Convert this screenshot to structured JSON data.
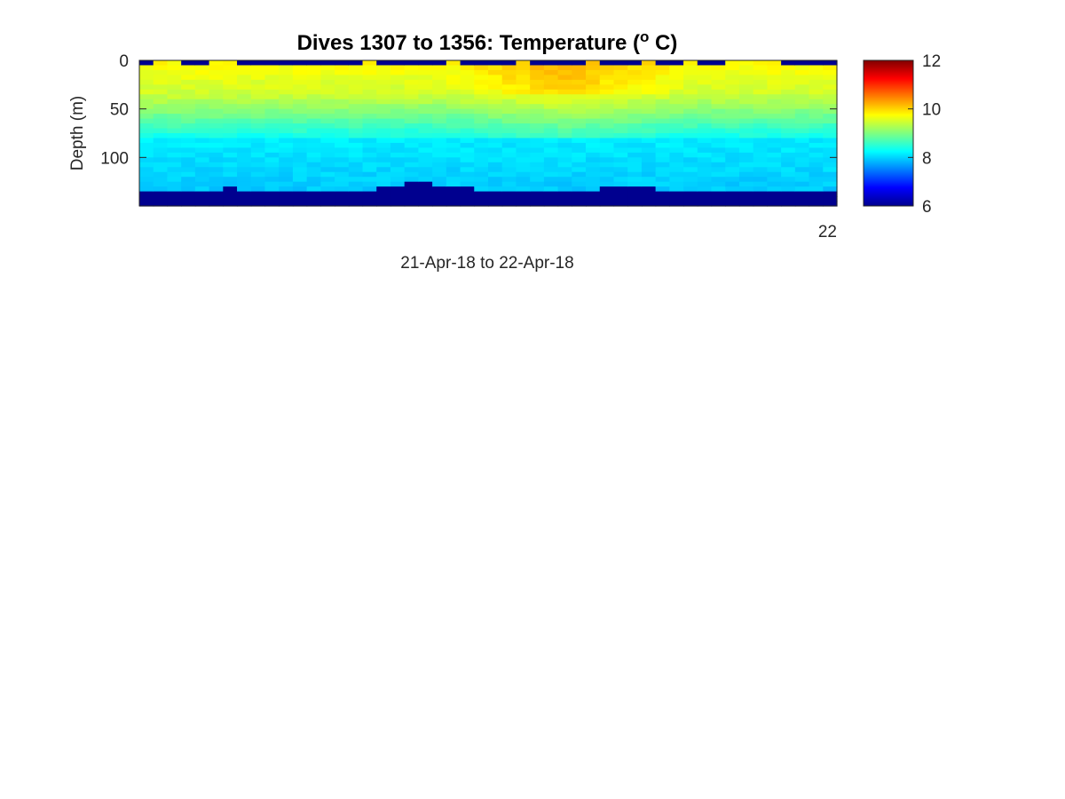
{
  "chart_data": {
    "type": "heatmap",
    "title_main": "Dives 1307 to 1356: Temperature (",
    "title_sup": "o",
    "title_end": " C)",
    "xlabel": "21-Apr-18 to 22-Apr-18",
    "ylabel": "Depth (m)",
    "x_ticks": [
      "22"
    ],
    "y_ticks": [
      0,
      50,
      100
    ],
    "ylim": [
      0,
      150
    ],
    "y_reversed": true,
    "colormap": "jet",
    "clim": [
      6,
      12
    ],
    "colorbar_ticks": [
      6,
      8,
      10,
      12
    ],
    "dives": {
      "first": 1307,
      "last": 1356
    },
    "surface_temp_C": 9.8,
    "mid_temp_C": 9.0,
    "deep_temp_C": 8.0,
    "no_data_color": "#00008f",
    "bottom_depth_m": [
      136,
      136,
      136,
      135,
      134,
      133,
      132,
      134,
      136,
      137,
      137,
      136,
      136,
      137,
      137,
      137,
      133,
      130,
      128,
      127,
      127,
      128,
      129,
      131,
      133,
      135,
      136,
      137,
      137,
      137,
      137,
      135,
      133,
      131,
      129,
      128,
      130,
      133,
      135,
      136,
      137,
      137,
      137,
      137,
      137,
      137,
      137,
      137,
      137,
      137
    ],
    "warm_band": {
      "center_dive_index": 30,
      "width": 9,
      "extra_temp_C": 0.5
    }
  }
}
